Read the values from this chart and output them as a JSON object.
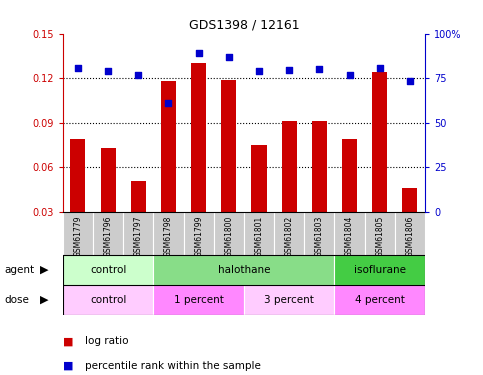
{
  "title": "GDS1398 / 12161",
  "samples": [
    "GSM61779",
    "GSM61796",
    "GSM61797",
    "GSM61798",
    "GSM61799",
    "GSM61800",
    "GSM61801",
    "GSM61802",
    "GSM61803",
    "GSM61804",
    "GSM61805",
    "GSM61806"
  ],
  "log_ratio": [
    0.079,
    0.073,
    0.051,
    0.118,
    0.13,
    0.119,
    0.075,
    0.091,
    0.091,
    0.079,
    0.124,
    0.046
  ],
  "percentile_rank": [
    81,
    79,
    77,
    61,
    89,
    87,
    79,
    79.5,
    80,
    77,
    81,
    73.5
  ],
  "bar_color": "#cc0000",
  "dot_color": "#0000cc",
  "ylim_left": [
    0.03,
    0.15
  ],
  "ylim_right": [
    0,
    100
  ],
  "yticks_left": [
    0.03,
    0.06,
    0.09,
    0.12,
    0.15
  ],
  "yticks_right": [
    0,
    25,
    50,
    75,
    100
  ],
  "agent_groups": [
    {
      "label": "control",
      "start": 0,
      "end": 3,
      "color": "#ccffcc"
    },
    {
      "label": "halothane",
      "start": 3,
      "end": 9,
      "color": "#88dd88"
    },
    {
      "label": "isoflurane",
      "start": 9,
      "end": 12,
      "color": "#44cc44"
    }
  ],
  "dose_groups": [
    {
      "label": "control",
      "start": 0,
      "end": 3,
      "color": "#ffccff"
    },
    {
      "label": "1 percent",
      "start": 3,
      "end": 6,
      "color": "#ff88ff"
    },
    {
      "label": "3 percent",
      "start": 6,
      "end": 9,
      "color": "#ffccff"
    },
    {
      "label": "4 percent",
      "start": 9,
      "end": 12,
      "color": "#ff88ff"
    }
  ],
  "axis_label_color_left": "#cc0000",
  "axis_label_color_right": "#0000cc",
  "sample_bg_color": "#cccccc",
  "background_color": "#ffffff"
}
